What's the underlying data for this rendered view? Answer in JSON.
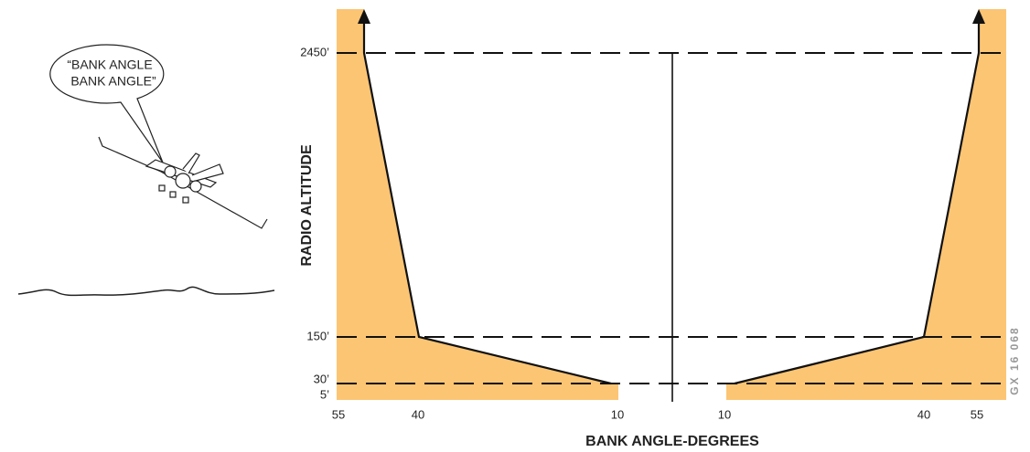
{
  "callout": {
    "lines": [
      "“BANK ANGLE",
      "BANK ANGLE”"
    ]
  },
  "axes": {
    "y_title": "RADIO ALTITUDE",
    "x_title": "BANK ANGLE-DEGREES",
    "altitude_labels": [
      "2450’",
      "150’",
      "30’",
      "5’"
    ],
    "bank_labels": [
      "55",
      "40",
      "10",
      "10",
      "40",
      "55"
    ]
  },
  "figure_id": "GX 16 068"
}
